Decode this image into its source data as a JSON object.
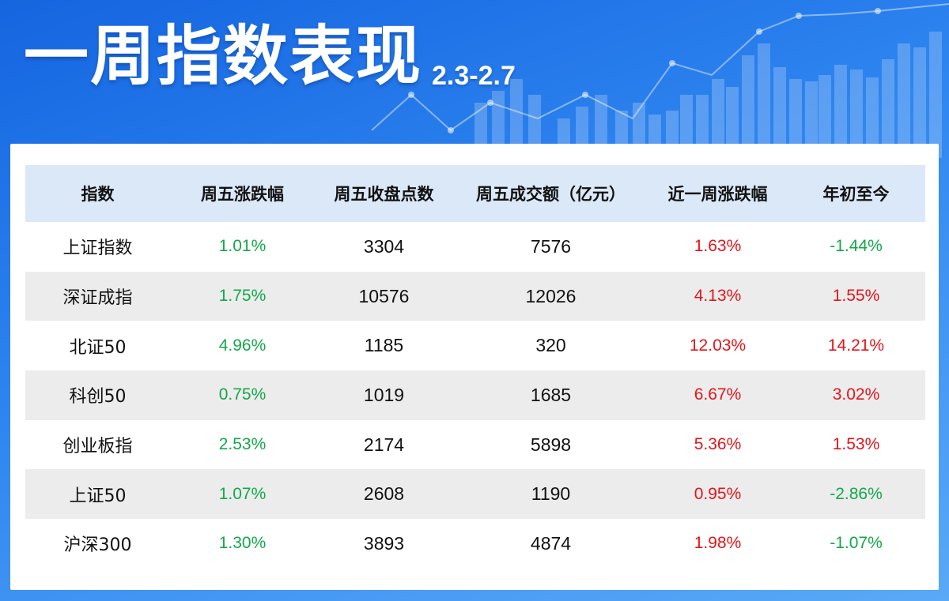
{
  "header": {
    "title": "一周指数表现",
    "date_range": "2.3-2.7"
  },
  "colors": {
    "up": "#e2151b",
    "down": "#13a84a",
    "header_bg": "#dbe8f8",
    "stripe": "#ececec",
    "banner": "#2f86f0"
  },
  "table": {
    "columns": [
      "指数",
      "周五涨跌幅",
      "周五收盘点数",
      "周五成交额（亿元）",
      "近一周涨跌幅",
      "年初至今"
    ],
    "rows": [
      {
        "name": "上证指数",
        "fri_change": "1.01%",
        "close": "3304",
        "turnover": "7576",
        "week_change": "1.63%",
        "ytd": "-1.44%"
      },
      {
        "name": "深证成指",
        "fri_change": "1.75%",
        "close": "10576",
        "turnover": "12026",
        "week_change": "4.13%",
        "ytd": "1.55%"
      },
      {
        "name": "北证50",
        "fri_change": "4.96%",
        "close": "1185",
        "turnover": "320",
        "week_change": "12.03%",
        "ytd": "14.21%"
      },
      {
        "name": "科创50",
        "fri_change": "0.75%",
        "close": "1019",
        "turnover": "1685",
        "week_change": "6.67%",
        "ytd": "3.02%"
      },
      {
        "name": "创业板指",
        "fri_change": "2.53%",
        "close": "2174",
        "turnover": "5898",
        "week_change": "5.36%",
        "ytd": "1.53%"
      },
      {
        "name": "上证50",
        "fri_change": "1.07%",
        "close": "2608",
        "turnover": "1190",
        "week_change": "0.95%",
        "ytd": "-2.86%"
      },
      {
        "name": "沪深300",
        "fri_change": "1.30%",
        "close": "3893",
        "turnover": "4874",
        "week_change": "1.98%",
        "ytd": "-1.07%"
      }
    ]
  }
}
